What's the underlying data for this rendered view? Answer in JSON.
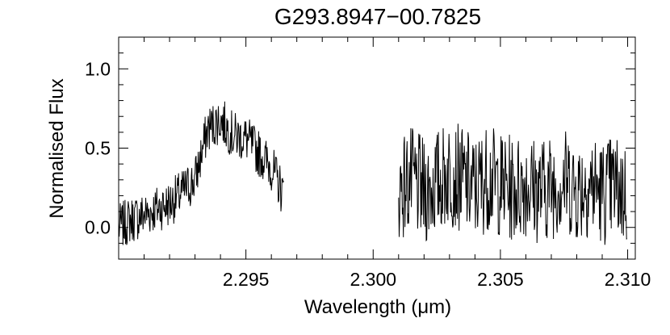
{
  "chart_data": {
    "type": "line",
    "title": "G293.8947−00.7825",
    "xlabel": "Wavelength (μm)",
    "ylabel": "Normalised Flux",
    "xlim": [
      2.29,
      2.3103
    ],
    "ylim": [
      -0.2,
      1.2
    ],
    "xticks": [
      2.295,
      2.3,
      2.305,
      2.31
    ],
    "xtick_labels": [
      "2.295",
      "2.300",
      "2.305",
      "2.310"
    ],
    "yticks": [
      0.0,
      0.5,
      1.0
    ],
    "ytick_labels": [
      "0.0",
      "0.5",
      "1.0"
    ],
    "grid": false,
    "line_color": "#000000",
    "series": [
      {
        "x": [
          2.29,
          2.2905,
          2.291,
          2.2915,
          2.292,
          2.2925,
          2.293,
          2.2935,
          2.294,
          2.2945,
          2.295,
          2.2955,
          2.296,
          2.2965,
          2.297,
          2.2975,
          2.298,
          2.2985,
          2.299,
          2.2995,
          2.3,
          2.3005,
          2.301,
          2.3015,
          2.302,
          2.3025,
          2.303,
          2.3035,
          2.304,
          2.3045,
          2.305,
          2.3055,
          2.306,
          2.3065,
          2.307,
          2.3075,
          2.308,
          2.3085,
          2.309,
          2.3095,
          2.31
        ],
        "y": [
          0.0,
          0.05,
          0.08,
          0.12,
          0.15,
          0.22,
          0.3,
          0.62,
          0.68,
          0.58,
          0.56,
          0.47,
          0.38,
          0.2,
          null,
          null,
          null,
          null,
          null,
          null,
          null,
          null,
          0.25,
          0.3,
          0.22,
          0.28,
          0.35,
          0.3,
          0.24,
          0.32,
          0.27,
          0.24,
          0.28,
          0.23,
          0.26,
          0.3,
          0.24,
          0.28,
          0.22,
          0.26,
          0.2
        ]
      }
    ]
  }
}
